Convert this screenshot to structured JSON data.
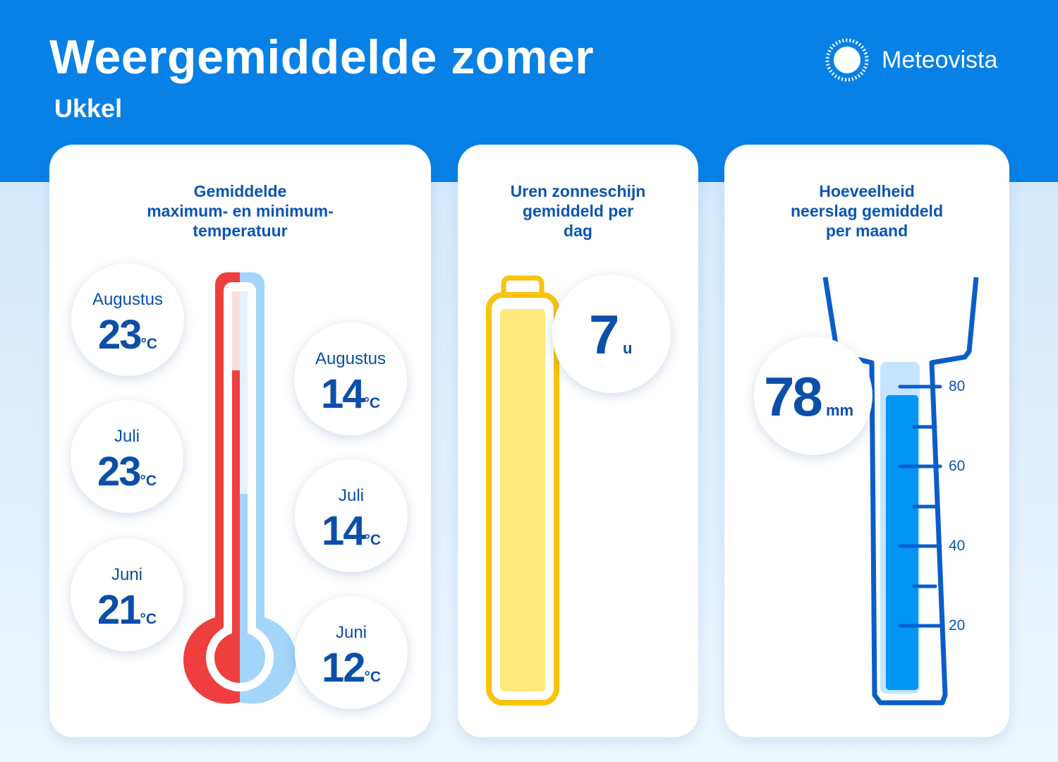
{
  "header": {
    "title": "Weergemiddelde zomer",
    "subtitle": "Ukkel",
    "brand": "Meteovista",
    "brand_icon": "sun-icon"
  },
  "colors": {
    "header_blue": "#0781e6",
    "text_blue": "#0b55b4",
    "max_red": "#ef3e3e",
    "min_blue": "#a4d5fb",
    "sun_yellow": "#f9c20c",
    "rain_blue": "#0296f4"
  },
  "temperature": {
    "title_lines": [
      "Gemiddelde",
      "maximum- en minimum-",
      "temperatuur"
    ],
    "unit": "°C",
    "max": [
      {
        "month": "Augustus",
        "value": "23"
      },
      {
        "month": "Juli",
        "value": "23"
      },
      {
        "month": "Juni",
        "value": "21"
      }
    ],
    "min": [
      {
        "month": "Augustus",
        "value": "14"
      },
      {
        "month": "Juli",
        "value": "14"
      },
      {
        "month": "Juni",
        "value": "12"
      }
    ]
  },
  "sunshine": {
    "title_lines": [
      "Uren zonneschijn",
      "gemiddeld per",
      "dag"
    ],
    "value": "7",
    "unit": "u"
  },
  "rain": {
    "title_lines": [
      "Hoeveelheid",
      "neerslag gemiddeld",
      "per maand"
    ],
    "value": "78",
    "unit": "mm",
    "scale_ticks": [
      "80",
      "60",
      "40",
      "20"
    ]
  }
}
